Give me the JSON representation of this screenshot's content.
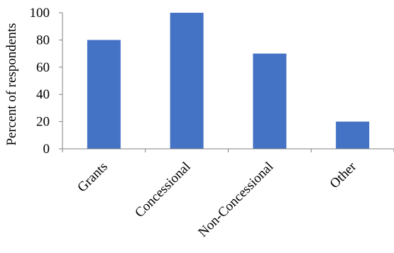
{
  "chart_data": {
    "type": "bar",
    "title": "",
    "xlabel": "",
    "ylabel": "Percent of respondents",
    "categories": [
      "Grants",
      "Concessional",
      "Non-Concessional",
      "Other"
    ],
    "values": [
      80,
      100,
      70,
      20
    ],
    "ylim": [
      0,
      100
    ],
    "yticks": [
      0,
      20,
      40,
      60,
      80,
      100
    ],
    "grid": false,
    "legend": "none",
    "bar_color": "#4472C4"
  }
}
